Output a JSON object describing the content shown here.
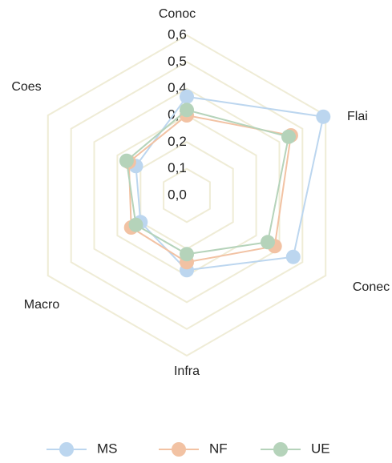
{
  "chart_data": {
    "type": "radar",
    "axes": [
      "Conoc",
      "Flai",
      "Conec",
      "Infra",
      "Macro",
      "Coes"
    ],
    "ticks": [
      "0,0",
      "0,1",
      "0,2",
      "0,3",
      "0,4",
      "0,5",
      "0,6"
    ],
    "rlim": [
      0,
      0.6
    ],
    "grid": true,
    "legend_position": "bottom",
    "series": [
      {
        "name": "MS",
        "color": "#bcd6ef",
        "values": [
          0.37,
          0.59,
          0.46,
          0.28,
          0.2,
          0.22
        ]
      },
      {
        "name": "NF",
        "color": "#f2c2a3",
        "values": [
          0.3,
          0.45,
          0.38,
          0.25,
          0.24,
          0.25
        ]
      },
      {
        "name": "UE",
        "color": "#b5d3ba",
        "values": [
          0.32,
          0.44,
          0.35,
          0.22,
          0.22,
          0.26
        ]
      }
    ],
    "grid_color": "#efecd6"
  }
}
